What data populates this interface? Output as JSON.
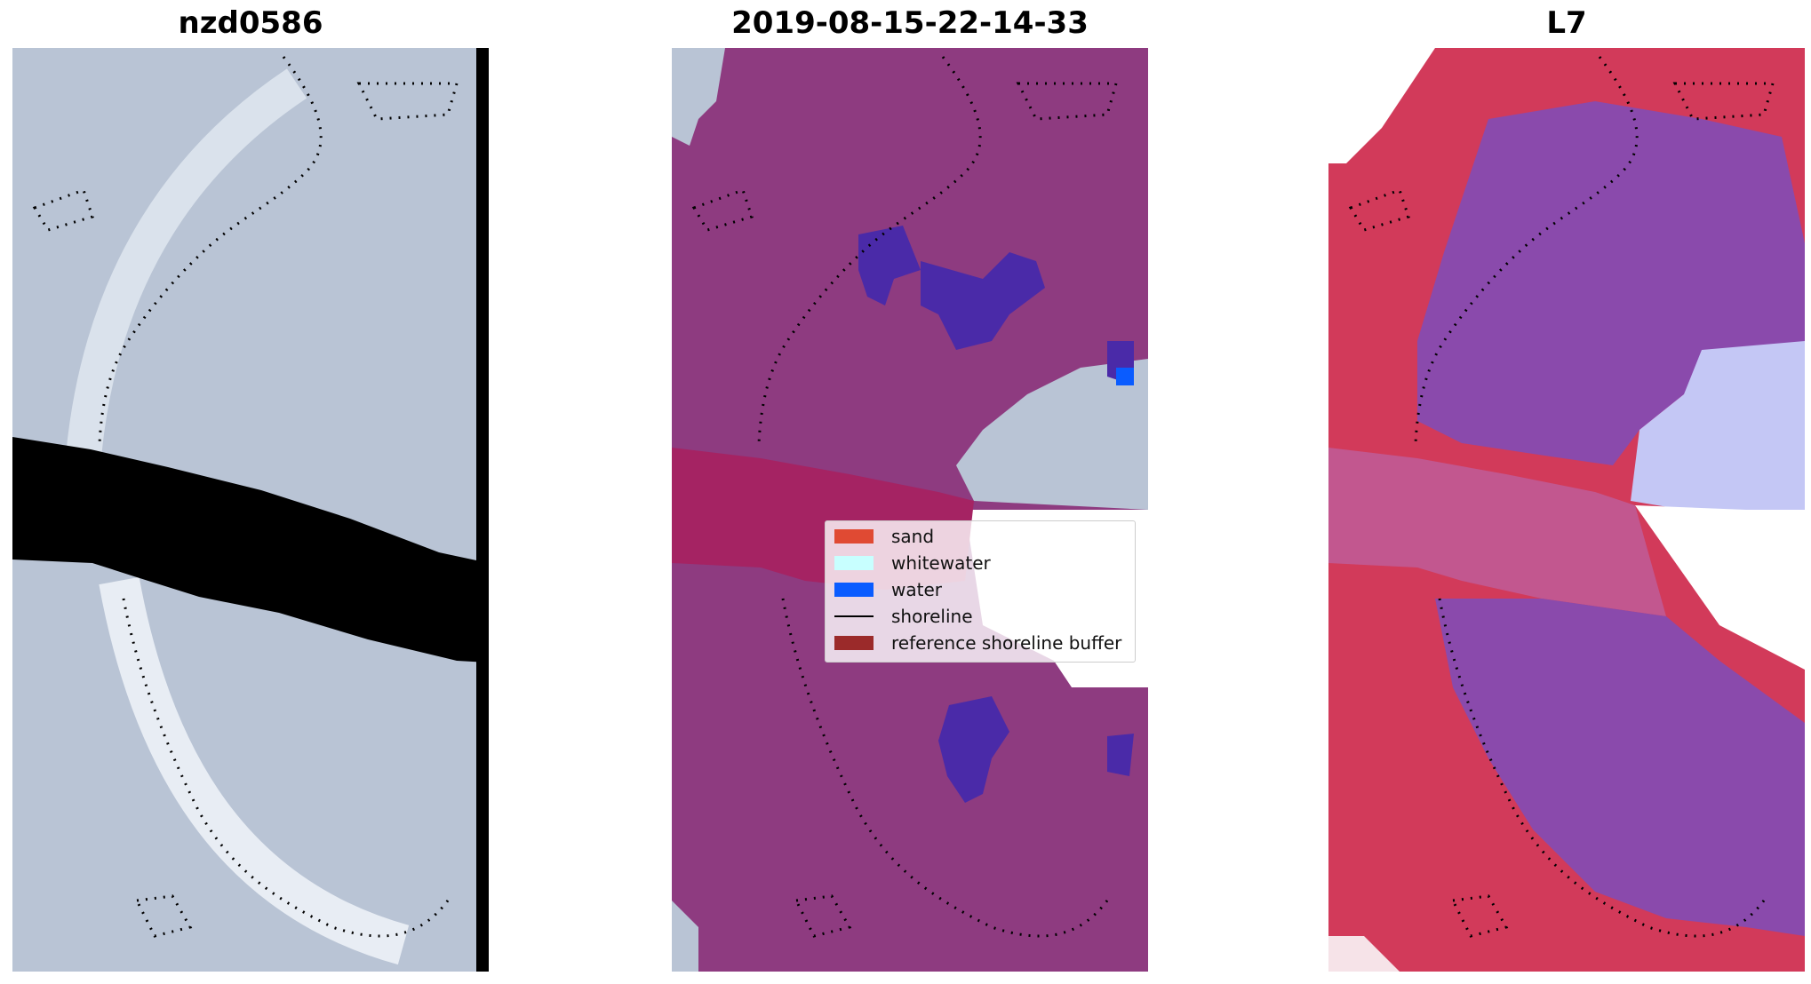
{
  "panels": [
    {
      "title": "nzd0586"
    },
    {
      "title": "2019-08-15-22-14-33"
    },
    {
      "title": "L7"
    }
  ],
  "legend": {
    "items": [
      {
        "label": "sand",
        "color": "#e04a33",
        "kind": "patch"
      },
      {
        "label": "whitewater",
        "color": "#c8ffff",
        "kind": "patch"
      },
      {
        "label": "water",
        "color": "#0a5cff",
        "kind": "patch"
      },
      {
        "label": "shoreline",
        "color": "#000000",
        "kind": "line"
      },
      {
        "label": "reference shoreline buffer",
        "color": "#9b2a2a",
        "kind": "patch"
      }
    ]
  },
  "colors": {
    "image_base": "#b7c3d4",
    "class_overlay": "#8d3a80",
    "buffer_band": "#a52363",
    "water_pixels": "#4a2aa8",
    "index_sand": "#d23a5a",
    "index_water": "#8a4aac",
    "index_white": "#c9ccf5"
  }
}
